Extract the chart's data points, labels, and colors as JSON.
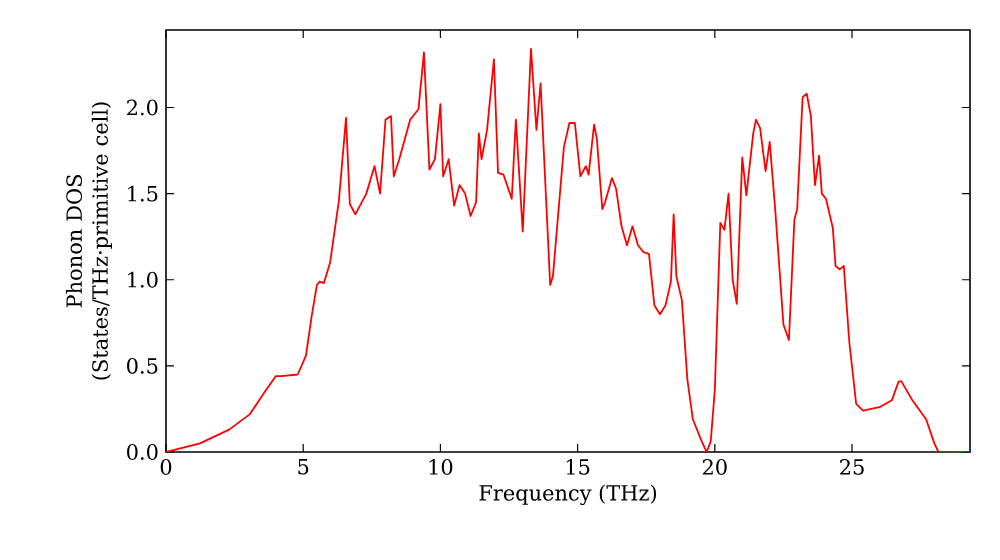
{
  "chart_data": {
    "type": "line",
    "xlabel": "Frequency (THz)",
    "ylabel": "Phonon DOS (States/THz·primitive cell)",
    "xlim": [
      0,
      29.3
    ],
    "ylim": [
      0,
      2.45
    ],
    "xticks": [
      0,
      5,
      10,
      15,
      20,
      25
    ],
    "yticks": [
      {
        "value": 0,
        "label": "0.0"
      },
      0.5,
      {
        "value": 1,
        "label": "1.0"
      },
      1.5,
      {
        "value": 2,
        "label": "2.0"
      }
    ],
    "line_style": "solid",
    "series": [
      {
        "color": "#ff0000",
        "x": [
          0,
          1.24,
          2.3,
          3.06,
          3.6,
          4.0,
          4.2,
          4.8,
          5.1,
          5.3,
          5.5,
          5.6,
          5.75,
          5.98,
          6.3,
          6.56,
          6.7,
          6.9,
          7.3,
          7.6,
          7.8,
          8.0,
          8.2,
          8.3,
          8.5,
          8.9,
          9.2,
          9.4,
          9.6,
          9.8,
          10.0,
          10.1,
          10.3,
          10.5,
          10.7,
          10.9,
          11.1,
          11.3,
          11.4,
          11.5,
          11.7,
          11.95,
          12.1,
          12.3,
          12.6,
          12.75,
          13.0,
          13.3,
          13.5,
          13.65,
          14.0,
          14.1,
          14.5,
          14.7,
          14.9,
          15.1,
          15.3,
          15.4,
          15.6,
          15.7,
          15.9,
          16.0,
          16.25,
          16.4,
          16.6,
          16.8,
          17.0,
          17.2,
          17.4,
          17.6,
          17.8,
          18.0,
          18.2,
          18.4,
          18.5,
          18.6,
          18.8,
          19.0,
          19.2,
          19.5,
          19.7,
          19.85,
          20.0,
          20.2,
          20.35,
          20.5,
          20.65,
          20.8,
          21.0,
          21.15,
          21.4,
          21.5,
          21.65,
          21.85,
          22.0,
          22.2,
          22.5,
          22.7,
          22.9,
          23.0,
          23.2,
          23.35,
          23.5,
          23.65,
          23.8,
          23.9,
          24.05,
          24.3,
          24.4,
          24.55,
          24.7,
          24.9,
          25.15,
          25.4,
          26.0,
          26.45,
          26.7,
          26.8,
          27.2,
          27.7,
          28.0,
          28.15,
          29.3
        ],
        "values": [
          0,
          0.05,
          0.13,
          0.22,
          0.35,
          0.44,
          0.44,
          0.45,
          0.56,
          0.78,
          0.97,
          0.99,
          0.98,
          1.1,
          1.46,
          1.94,
          1.44,
          1.38,
          1.5,
          1.66,
          1.5,
          1.93,
          1.95,
          1.6,
          1.7,
          1.93,
          1.99,
          2.32,
          1.64,
          1.7,
          2.02,
          1.6,
          1.7,
          1.43,
          1.55,
          1.5,
          1.37,
          1.45,
          1.85,
          1.7,
          1.87,
          2.28,
          1.62,
          1.61,
          1.47,
          1.93,
          1.28,
          2.34,
          1.87,
          2.14,
          0.97,
          1.02,
          1.77,
          1.91,
          1.91,
          1.6,
          1.66,
          1.61,
          1.9,
          1.82,
          1.41,
          1.45,
          1.59,
          1.53,
          1.31,
          1.2,
          1.31,
          1.2,
          1.16,
          1.15,
          0.85,
          0.8,
          0.85,
          0.99,
          1.38,
          1.02,
          0.88,
          0.42,
          0.19,
          0.07,
          0,
          0.06,
          0.36,
          1.33,
          1.29,
          1.5,
          1.0,
          0.86,
          1.71,
          1.49,
          1.85,
          1.93,
          1.88,
          1.63,
          1.8,
          1.41,
          0.74,
          0.65,
          1.35,
          1.41,
          2.06,
          2.08,
          1.95,
          1.55,
          1.72,
          1.5,
          1.47,
          1.3,
          1.08,
          1.06,
          1.08,
          0.64,
          0.28,
          0.24,
          0.26,
          0.3,
          0.41,
          0.41,
          0.3,
          0.19,
          0.05,
          0,
          0
        ]
      }
    ]
  }
}
